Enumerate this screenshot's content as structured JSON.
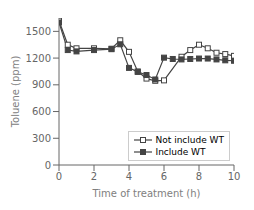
{
  "chart_data": {
    "type": "line",
    "xlabel": "Time of treatment (h)",
    "ylabel": "Toluene (ppm)",
    "xlim": [
      0,
      10
    ],
    "ylim": [
      0,
      1650
    ],
    "xticks": [
      0,
      2,
      4,
      6,
      8,
      10
    ],
    "yticks": [
      0,
      300,
      600,
      900,
      1200,
      1500
    ],
    "grid": false,
    "legend": "lower right",
    "series": [
      {
        "name": "Not include WT",
        "color": "#444444",
        "marker": "square-open",
        "x": [
          0,
          0.5,
          1,
          2,
          3,
          3.5,
          4,
          4.5,
          5,
          5.5,
          6,
          7,
          7.5,
          8,
          8.5,
          9,
          9.5,
          10
        ],
        "values": [
          1620,
          1350,
          1310,
          1310,
          1305,
          1400,
          1270,
          1050,
          970,
          945,
          950,
          1215,
          1290,
          1350,
          1310,
          1260,
          1245,
          1225
        ]
      },
      {
        "name": "Include WT",
        "color": "#444444",
        "marker": "square",
        "x": [
          0,
          0.5,
          1,
          2,
          3,
          3.5,
          4,
          4.5,
          5,
          5.5,
          6,
          6.5,
          7,
          7.5,
          8,
          8.5,
          9,
          9.5,
          10
        ],
        "values": [
          1600,
          1290,
          1275,
          1290,
          1300,
          1355,
          1090,
          1045,
          1010,
          960,
          1205,
          1190,
          1185,
          1190,
          1195,
          1195,
          1185,
          1175,
          1170
        ]
      }
    ]
  }
}
